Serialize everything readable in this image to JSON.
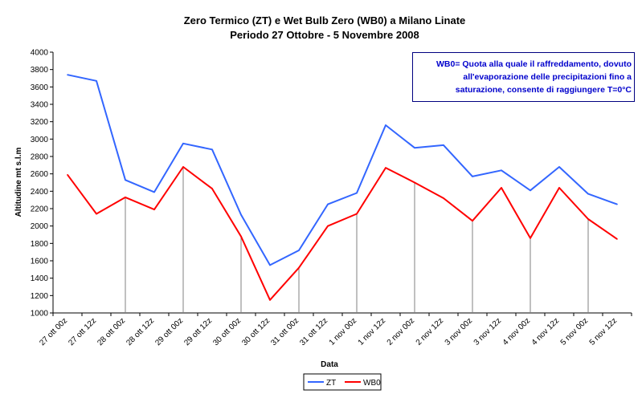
{
  "chart_data": {
    "type": "line",
    "title": "Zero Termico (ZT) e Wet Bulb Zero (WB0) a Milano Linate",
    "subtitle": "Periodo 27 Ottobre - 5 Novembre 2008",
    "xlabel": "Data",
    "ylabel": "Altitudine mt s.l.m",
    "ylim": [
      1000,
      4000
    ],
    "yticks": [
      "1000",
      "1200",
      "1400",
      "1600",
      "1800",
      "2000",
      "2200",
      "2400",
      "2600",
      "2800",
      "3000",
      "3200",
      "3400",
      "3600",
      "3800",
      "4000"
    ],
    "categories": [
      "27 ott 00z",
      "27 ott 12z",
      "28 ott 00z",
      "28 ott 12z",
      "29 ott 00z",
      "29 ott 12z",
      "30 ott 00z",
      "30 ott 12z",
      "31 ott 00z",
      "31 ott 12z",
      "1 nov 00z",
      "1 nov 12z",
      "2 nov 00z",
      "2 nov 12z",
      "3 nov 00z",
      "3 nov 12z",
      "4 nov 00z",
      "4 nov 12z",
      "5 nov 00z",
      "5 nov 12z"
    ],
    "series": [
      {
        "name": "ZT",
        "color": "#3366ff",
        "values": [
          3740,
          3670,
          2530,
          2390,
          2950,
          2880,
          2130,
          1550,
          1720,
          2250,
          2380,
          3160,
          2900,
          2930,
          2570,
          2640,
          2410,
          2680,
          2370,
          2250
        ]
      },
      {
        "name": "WB0",
        "color": "#ff0000",
        "values": [
          2590,
          2140,
          2330,
          2190,
          2680,
          2430,
          1880,
          1150,
          1520,
          2000,
          2140,
          2670,
          2500,
          2320,
          2060,
          2440,
          1860,
          2440,
          2080,
          1850
        ]
      }
    ],
    "grid": false,
    "legend_position": "bottom-center",
    "annotation": "WB0= Quota alla quale il raffreddamento, dovuto all'evaporazione delle precipitazioni fino a saturazione, consente di raggiungere T=0°C",
    "annotation_color": "#0000cc"
  }
}
